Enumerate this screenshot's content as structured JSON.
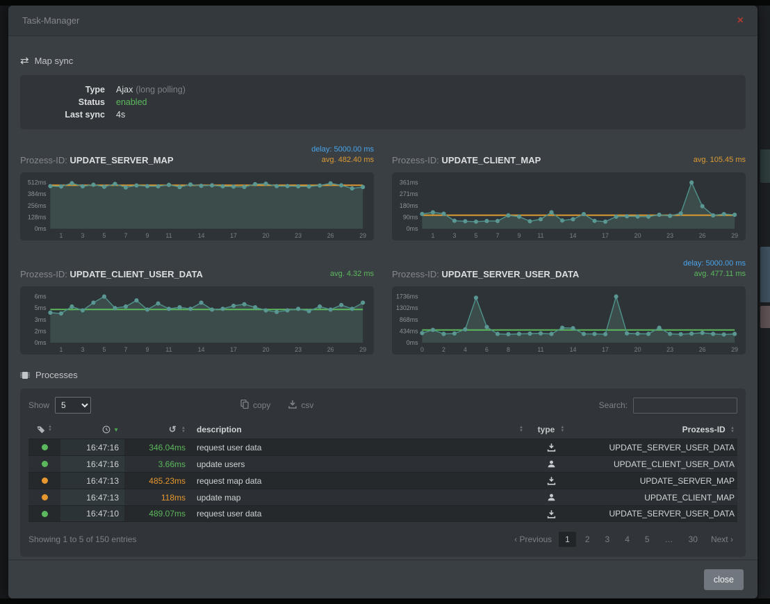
{
  "window": {
    "title": "Task-Manager",
    "close_icon": "×"
  },
  "labels": {
    "prozess_prefix": "Prozess-ID:"
  },
  "colors": {
    "teal_line": "#4e8f8a",
    "teal_dot": "#5a9793",
    "teal_fill": "#3b4c4a",
    "orange": "#dd9b33",
    "green": "#5cb85c",
    "blue": "#4aa3e8",
    "red_close": "#b03a31"
  },
  "map_sync": {
    "heading": "Map sync",
    "rows": [
      {
        "label": "Type",
        "value": "Ajax",
        "extra": "(long polling)"
      },
      {
        "label": "Status",
        "value": "enabled"
      },
      {
        "label": "Last sync",
        "value": "4s"
      }
    ]
  },
  "chart_data": [
    {
      "type": "area",
      "name": "UPDATE_SERVER_MAP",
      "delay_label": "delay: 5000.00 ms",
      "avg_label": "avg. 482.40 ms",
      "avg_value": 482.4,
      "avg_color": "#dd9b33",
      "y_tick_labels": [
        "512ms",
        "384ms",
        "256ms",
        "128ms",
        "0ms"
      ],
      "y_tick_values": [
        512,
        384,
        256,
        128,
        0
      ],
      "x_tick_labels": [
        "1",
        "3",
        "5",
        "7",
        "9",
        "11",
        "14",
        "17",
        "20",
        "23",
        "26",
        "29"
      ],
      "x_tick_index": [
        1,
        3,
        5,
        7,
        9,
        11,
        14,
        17,
        20,
        23,
        26,
        29
      ],
      "values": [
        472,
        468,
        505,
        470,
        488,
        465,
        497,
        458,
        480,
        472,
        470,
        487,
        462,
        490,
        476,
        481,
        470,
        467,
        463,
        494,
        499,
        472,
        473,
        470,
        468,
        479,
        503,
        481,
        447,
        462
      ]
    },
    {
      "type": "area",
      "name": "UPDATE_CLIENT_MAP",
      "avg_label": "avg. 105.45 ms",
      "avg_value": 105.45,
      "avg_color": "#dd9b33",
      "y_tick_labels": [
        "361ms",
        "271ms",
        "180ms",
        "90ms",
        "0ms"
      ],
      "y_tick_values": [
        361,
        271,
        180,
        90,
        0
      ],
      "x_tick_labels": [
        "1",
        "3",
        "5",
        "7",
        "9",
        "11",
        "14",
        "17",
        "20",
        "23",
        "26",
        "29"
      ],
      "x_tick_index": [
        1,
        3,
        5,
        7,
        9,
        11,
        14,
        17,
        20,
        23,
        26,
        29
      ],
      "values": [
        115,
        128,
        117,
        62,
        58,
        55,
        60,
        60,
        104,
        94,
        58,
        74,
        128,
        64,
        74,
        114,
        61,
        55,
        94,
        97,
        95,
        94,
        109,
        100,
        119,
        361,
        176,
        104,
        114,
        109
      ]
    },
    {
      "type": "area",
      "name": "UPDATE_CLIENT_USER_DATA",
      "avg_label": "avg. 4.32 ms",
      "avg_value": 4.32,
      "avg_color": "#5cb85c",
      "y_tick_labels": [
        "6ms",
        "5ms",
        "3ms",
        "2ms",
        "0ms"
      ],
      "y_tick_values": [
        6,
        4.5,
        3,
        1.5,
        0
      ],
      "x_tick_labels": [
        "1",
        "3",
        "5",
        "7",
        "9",
        "11",
        "14",
        "17",
        "20",
        "23",
        "26",
        "29"
      ],
      "x_tick_index": [
        1,
        3,
        5,
        7,
        9,
        11,
        14,
        17,
        20,
        23,
        26,
        29
      ],
      "values": [
        3.9,
        3.8,
        4.7,
        4.2,
        5.2,
        6.0,
        4.5,
        4.7,
        5.5,
        4.3,
        5.1,
        4.4,
        4.6,
        4.4,
        5.2,
        4.3,
        4.4,
        4.8,
        5.0,
        4.6,
        4.2,
        4.0,
        4.2,
        4.4,
        4.1,
        4.7,
        4.3,
        4.9,
        4.4,
        5.2
      ]
    },
    {
      "type": "area",
      "name": "UPDATE_SERVER_USER_DATA",
      "delay_label": "delay: 5000.00 ms",
      "avg_label": "avg. 477.11 ms",
      "avg_value": 477.11,
      "avg_color": "#5cb85c",
      "y_tick_labels": [
        "1736ms",
        "1302ms",
        "868ms",
        "434ms",
        "0ms"
      ],
      "y_tick_values": [
        1736,
        1302,
        868,
        434,
        0
      ],
      "x_tick_labels": [
        "0",
        "2",
        "4",
        "6",
        "8",
        "11",
        "14",
        "17",
        "20",
        "23",
        "26",
        "29"
      ],
      "x_tick_index": [
        0,
        2,
        4,
        6,
        8,
        11,
        14,
        17,
        20,
        23,
        26,
        29
      ],
      "values": [
        360,
        480,
        330,
        345,
        500,
        1690,
        590,
        330,
        318,
        330,
        340,
        350,
        330,
        560,
        545,
        330,
        328,
        320,
        1736,
        350,
        338,
        330,
        560,
        330,
        318,
        340,
        368,
        330,
        308,
        330
      ]
    }
  ],
  "processes": {
    "heading": "Processes",
    "show_label": "Show",
    "show_value": "5",
    "copy_label": "copy",
    "csv_label": "csv",
    "search_label": "Search:",
    "columns": {
      "description": "description",
      "type": "type",
      "prozess_id": "Prozess-ID"
    },
    "rows": [
      {
        "status": "green",
        "time": "16:47:16",
        "duration": "346.04ms",
        "duration_color": "green",
        "description": "request user data",
        "type": "server",
        "prozess_id": "UPDATE_SERVER_USER_DATA"
      },
      {
        "status": "green",
        "time": "16:47:16",
        "duration": "3.66ms",
        "duration_color": "green",
        "description": "update users",
        "type": "client",
        "prozess_id": "UPDATE_CLIENT_USER_DATA"
      },
      {
        "status": "orange",
        "time": "16:47:13",
        "duration": "485.23ms",
        "duration_color": "orange",
        "description": "request map data",
        "type": "server",
        "prozess_id": "UPDATE_SERVER_MAP"
      },
      {
        "status": "orange",
        "time": "16:47:13",
        "duration": "118ms",
        "duration_color": "orange",
        "description": "update map",
        "type": "client",
        "prozess_id": "UPDATE_CLIENT_MAP"
      },
      {
        "status": "green",
        "time": "16:47:10",
        "duration": "489.07ms",
        "duration_color": "green",
        "description": "request user data",
        "type": "server",
        "prozess_id": "UPDATE_SERVER_USER_DATA"
      }
    ],
    "summary": "Showing 1 to 5 of 150 entries",
    "pagination": {
      "previous": "Previous",
      "pages": [
        "1",
        "2",
        "3",
        "4",
        "5",
        "…",
        "30"
      ],
      "active": "1",
      "next": "Next"
    }
  },
  "footer": {
    "close_label": "close"
  }
}
